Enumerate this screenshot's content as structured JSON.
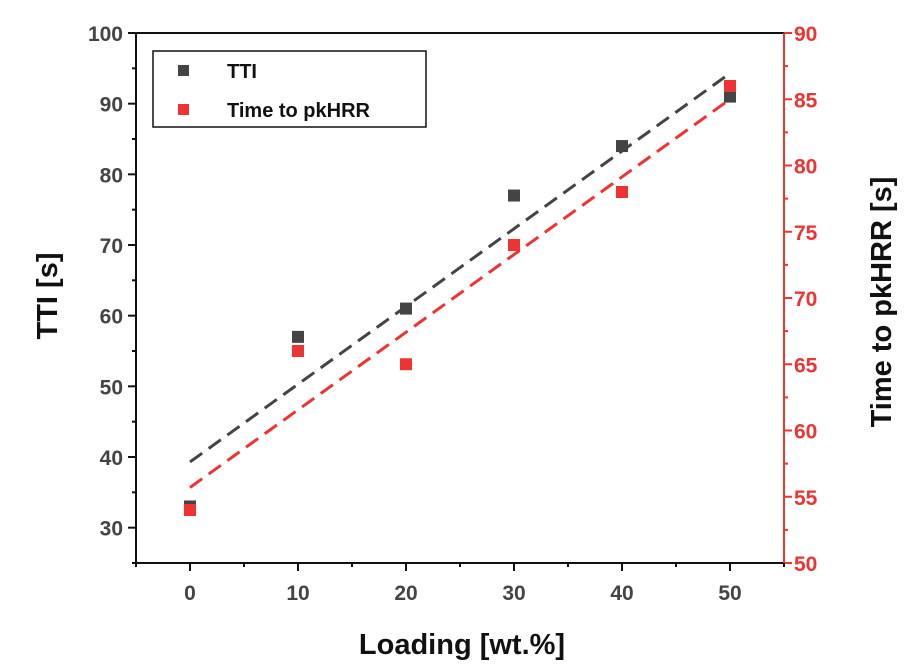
{
  "chart_data": {
    "type": "scatter",
    "xlabel": "Loading [wt.%]",
    "ylabel_left": "TTI [s]",
    "ylabel_right": "Time to pkHRR [s]",
    "xlim": [
      -5,
      55
    ],
    "ylim_left": [
      25,
      100
    ],
    "ylim_right": [
      50,
      90
    ],
    "x_ticks": [
      "0",
      "10",
      "20",
      "30",
      "40",
      "50"
    ],
    "y_left_ticks": [
      "30",
      "40",
      "50",
      "60",
      "70",
      "80",
      "90",
      "100"
    ],
    "y_right_ticks": [
      "50",
      "55",
      "60",
      "65",
      "70",
      "75",
      "80",
      "85",
      "90"
    ],
    "legend_position": "top-left",
    "grid": false,
    "series": [
      {
        "name": "TTI",
        "axis": "left",
        "color": "#444444",
        "marker": "square",
        "x": [
          0,
          10,
          20,
          30,
          40,
          50
        ],
        "y": [
          33,
          57,
          61,
          77,
          84,
          91
        ],
        "fit": {
          "style": "dashed",
          "x": [
            0,
            50
          ],
          "y": [
            39.3,
            94.3
          ]
        }
      },
      {
        "name": "Time to pkHRR",
        "axis": "right",
        "color": "#ee3333",
        "marker": "square",
        "x": [
          0,
          10,
          20,
          30,
          40,
          50
        ],
        "y": [
          54,
          66,
          65,
          74,
          78,
          86
        ],
        "fit": {
          "style": "dashed",
          "x": [
            0,
            50
          ],
          "y": [
            55.7,
            85.0
          ]
        }
      }
    ]
  }
}
